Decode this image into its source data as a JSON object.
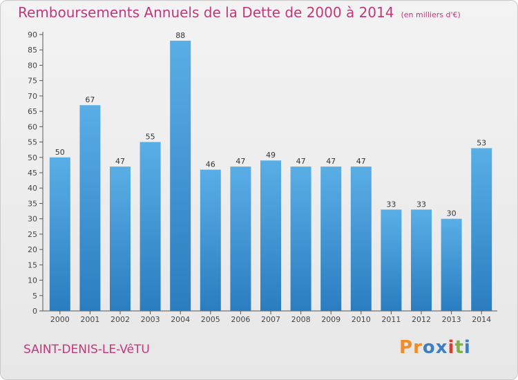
{
  "header": {
    "title": "Remboursements Annuels de la Dette de 2000 à 2014",
    "subtitle": "(en milliers d'€)"
  },
  "footer": {
    "commune": "SAINT-DENIS-LE-VêTU",
    "logo_text": "Proxiti",
    "logo_colors": [
      "#f28c28",
      "#f28c28",
      "#3d7fc4",
      "#3d7fc4",
      "#e2392c",
      "#7cb342",
      "#3d7fc4"
    ]
  },
  "colors": {
    "bar_light": "#5aaee6",
    "bar_dark": "#2a7dc0",
    "title": "#c0387a"
  },
  "chart_data": {
    "type": "bar",
    "categories": [
      "2000",
      "2001",
      "2002",
      "2003",
      "2004",
      "2005",
      "2006",
      "2007",
      "2008",
      "2009",
      "2010",
      "2011",
      "2012",
      "2013",
      "2014"
    ],
    "values": [
      50,
      67,
      47,
      55,
      88,
      46,
      47,
      49,
      47,
      47,
      47,
      33,
      33,
      30,
      53
    ],
    "ylim": [
      0,
      90
    ],
    "yticks": [
      0,
      5,
      10,
      15,
      20,
      25,
      30,
      35,
      40,
      45,
      50,
      55,
      60,
      65,
      70,
      75,
      80,
      85,
      90
    ],
    "grid": false,
    "legend": "none"
  }
}
